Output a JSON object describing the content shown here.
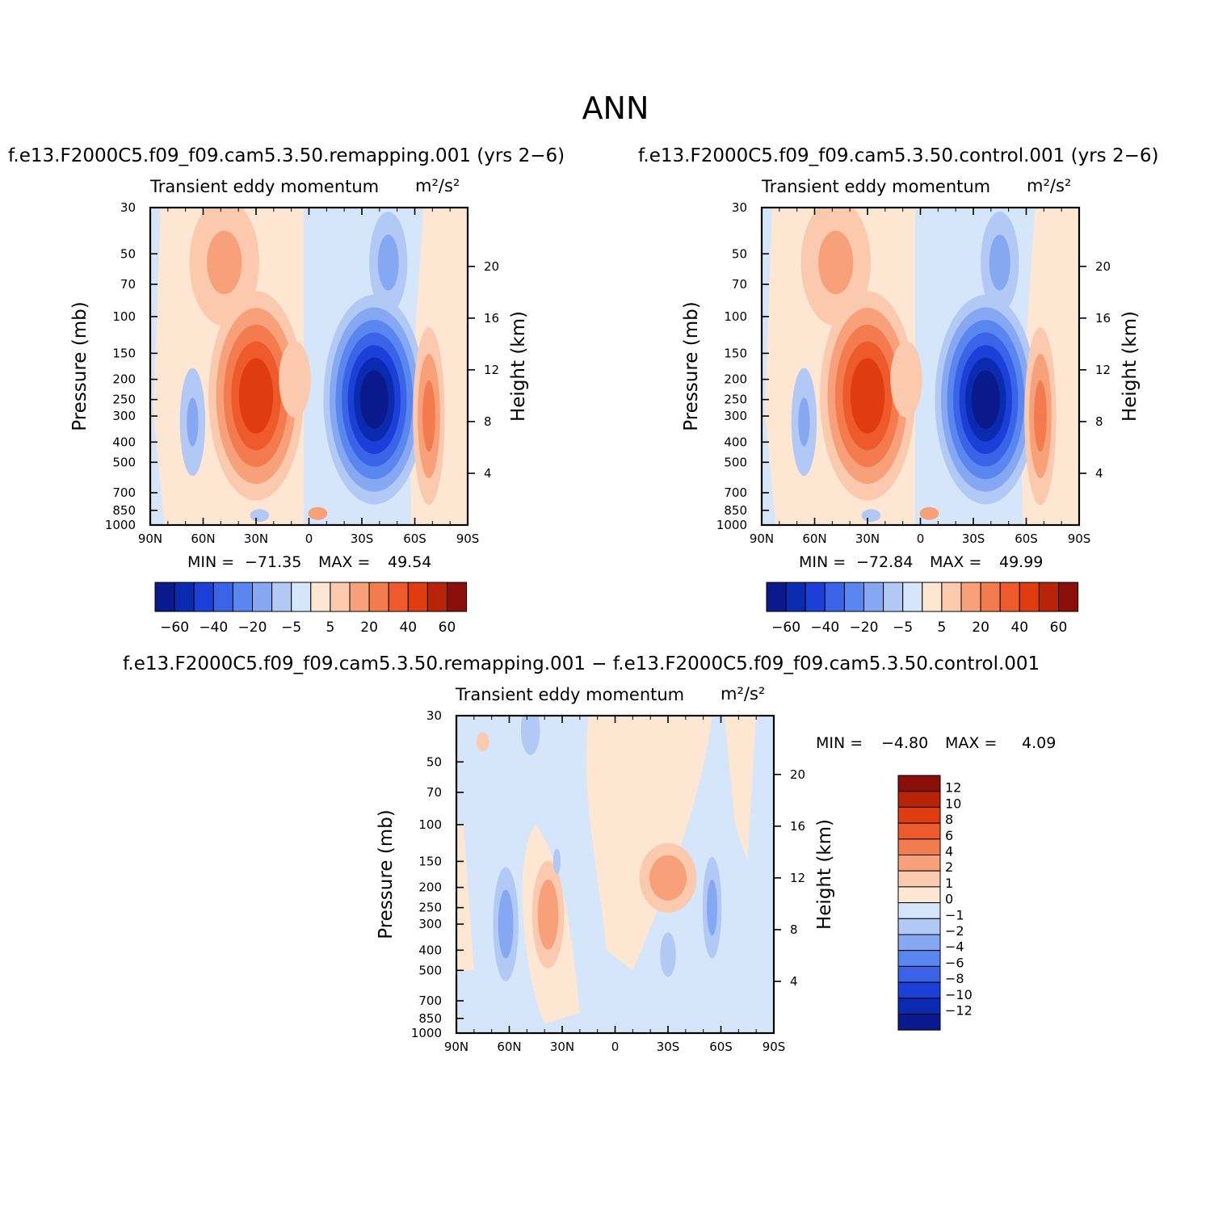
{
  "title": "ANN",
  "colors": {
    "neg": [
      "#0a1a8c",
      "#0a2bb0",
      "#1c3fd8",
      "#3a63e8",
      "#5a86ef",
      "#86a8f3",
      "#b2c9f6",
      "#d6e6fa"
    ],
    "pos": [
      "#fde7d3",
      "#fbc9ae",
      "#f7a07a",
      "#f47b4e",
      "#ee5a2c",
      "#e03c12",
      "#b8240a",
      "#8a0f0a"
    ]
  },
  "panels": [
    {
      "case": "f.e13.F2000C5.f09_f09.cam5.3.50.remapping.001  (yrs 2−6)",
      "header": "Transient  eddy  momentum",
      "units": "m²/s²",
      "min_label": "MIN  =",
      "min_value": "−71.35",
      "max_label": "MAX  =",
      "max_value": "49.54",
      "ylabel": "Pressure  (mb)",
      "ylabel2": "Height  (km)",
      "xticks": [
        "90N",
        "60N",
        "30N",
        "0",
        "30S",
        "60S",
        "90S"
      ],
      "yticks": [
        "30",
        "50",
        "70",
        "100",
        "150",
        "200",
        "250",
        "300",
        "400",
        "500",
        "700",
        "850",
        "1000"
      ],
      "hticks": [
        "20",
        "16",
        "12",
        "8",
        "4"
      ],
      "colorbar_labels": [
        "−60",
        "−40",
        "−20",
        "−5",
        "5",
        "20",
        "40",
        "60"
      ]
    },
    {
      "case": "f.e13.F2000C5.f09_f09.cam5.3.50.control.001  (yrs 2−6)",
      "header": "Transient  eddy  momentum",
      "units": "m²/s²",
      "min_label": "MIN  =",
      "min_value": "−72.84",
      "max_label": "MAX  =",
      "max_value": "49.99",
      "ylabel": "Pressure  (mb)",
      "ylabel2": "Height  (km)",
      "xticks": [
        "90N",
        "60N",
        "30N",
        "0",
        "30S",
        "60S",
        "90S"
      ],
      "yticks": [
        "30",
        "50",
        "70",
        "100",
        "150",
        "200",
        "250",
        "300",
        "400",
        "500",
        "700",
        "850",
        "1000"
      ],
      "hticks": [
        "20",
        "16",
        "12",
        "8",
        "4"
      ],
      "colorbar_labels": [
        "−60",
        "−40",
        "−20",
        "−5",
        "5",
        "20",
        "40",
        "60"
      ]
    },
    {
      "case": "f.e13.F2000C5.f09_f09.cam5.3.50.remapping.001  −  f.e13.F2000C5.f09_f09.cam5.3.50.control.001",
      "header": "Transient  eddy  momentum",
      "units": "m²/s²",
      "min_label": "MIN  =",
      "min_value": "−4.80",
      "max_label": "MAX  =",
      "max_value": "4.09",
      "ylabel": "Pressure  (mb)",
      "ylabel2": "Height  (km)",
      "xticks": [
        "90N",
        "60N",
        "30N",
        "0",
        "30S",
        "60S",
        "90S"
      ],
      "yticks": [
        "30",
        "50",
        "70",
        "100",
        "150",
        "200",
        "250",
        "300",
        "400",
        "500",
        "700",
        "850",
        "1000"
      ],
      "hticks": [
        "20",
        "16",
        "12",
        "8",
        "4"
      ],
      "colorbar_labels": [
        "12",
        "10",
        "8",
        "6",
        "4",
        "2",
        "1",
        "0",
        "−1",
        "−2",
        "−4",
        "−6",
        "−8",
        "−10",
        "−12"
      ]
    }
  ],
  "chart_data": [
    {
      "type": "heatmap",
      "title": "Transient  eddy  momentum",
      "xlabel": "",
      "ylabel": "Pressure  (mb)",
      "x_categories": [
        "90N",
        "60N",
        "30N",
        "0",
        "30S",
        "60S",
        "90S"
      ],
      "pressure_levels_mb": [
        30,
        50,
        70,
        100,
        150,
        200,
        250,
        300,
        400,
        500,
        700,
        850,
        1000
      ],
      "contour_levels": [
        -60,
        -50,
        -40,
        -30,
        -20,
        -10,
        -5,
        0,
        5,
        10,
        20,
        30,
        40,
        50,
        60
      ],
      "min": -71.35,
      "max": 49.54,
      "features": [
        {
          "sign": "positive",
          "lat": 30,
          "pressure_mb": 250,
          "peak": 49.54
        },
        {
          "sign": "negative",
          "lat": -37,
          "pressure_mb": 250,
          "peak": -71.35
        },
        {
          "sign": "positive",
          "lat": -68,
          "pressure_mb": 300,
          "peak": 30
        }
      ]
    },
    {
      "type": "heatmap",
      "title": "Transient  eddy  momentum",
      "xlabel": "",
      "ylabel": "Pressure  (mb)",
      "x_categories": [
        "90N",
        "60N",
        "30N",
        "0",
        "30S",
        "60S",
        "90S"
      ],
      "pressure_levels_mb": [
        30,
        50,
        70,
        100,
        150,
        200,
        250,
        300,
        400,
        500,
        700,
        850,
        1000
      ],
      "contour_levels": [
        -60,
        -50,
        -40,
        -30,
        -20,
        -10,
        -5,
        0,
        5,
        10,
        20,
        30,
        40,
        50,
        60
      ],
      "min": -72.84,
      "max": 49.99,
      "features": [
        {
          "sign": "positive",
          "lat": 30,
          "pressure_mb": 250,
          "peak": 49.99
        },
        {
          "sign": "negative",
          "lat": -37,
          "pressure_mb": 250,
          "peak": -72.84
        },
        {
          "sign": "positive",
          "lat": -68,
          "pressure_mb": 300,
          "peak": 30
        }
      ]
    },
    {
      "type": "heatmap",
      "title": "Transient  eddy  momentum",
      "xlabel": "",
      "ylabel": "Pressure  (mb)",
      "x_categories": [
        "90N",
        "60N",
        "30N",
        "0",
        "30S",
        "60S",
        "90S"
      ],
      "pressure_levels_mb": [
        30,
        50,
        70,
        100,
        150,
        200,
        250,
        300,
        400,
        500,
        700,
        850,
        1000
      ],
      "contour_levels": [
        -12,
        -10,
        -8,
        -6,
        -4,
        -2,
        -1,
        0,
        1,
        2,
        4,
        6,
        8,
        10,
        12
      ],
      "min": -4.8,
      "max": 4.09,
      "features": [
        {
          "sign": "positive",
          "lat": 38,
          "pressure_mb": 270,
          "peak": 4.09
        },
        {
          "sign": "positive",
          "lat": -30,
          "pressure_mb": 180,
          "peak": 3.5
        },
        {
          "sign": "negative",
          "lat": 62,
          "pressure_mb": 300,
          "peak": -4.8
        },
        {
          "sign": "negative",
          "lat": -55,
          "pressure_mb": 250,
          "peak": -3
        }
      ]
    }
  ]
}
